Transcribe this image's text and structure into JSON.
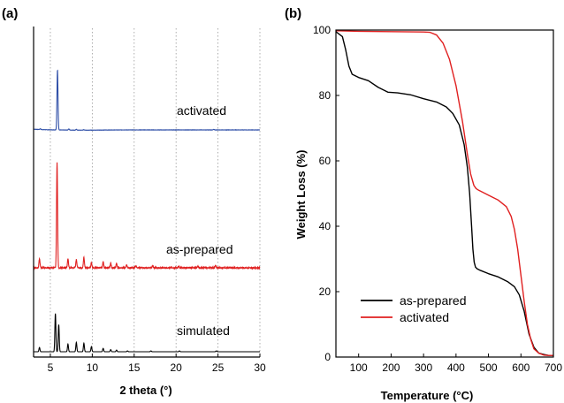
{
  "chart_data": [
    {
      "panel": "(a)",
      "type": "line",
      "xlabel": "2 theta (°)",
      "ylabel": "",
      "xlim": [
        3,
        30
      ],
      "xticks": [
        5,
        10,
        15,
        20,
        25,
        30
      ],
      "grid_x": "dotted",
      "series": [
        {
          "name": "activated",
          "color": "#3050a8",
          "baseline": 0.0,
          "noise": true,
          "peaks": [
            [
              3.8,
              0.25
            ],
            [
              5.85,
              20.0
            ],
            [
              7.2,
              0.35
            ],
            [
              8.1,
              0.25
            ],
            [
              9.0,
              0.15
            ],
            [
              24.5,
              0.15
            ]
          ]
        },
        {
          "name": "as-prepared",
          "color": "#e02020",
          "baseline": 0.0,
          "noise": true,
          "peaks": [
            [
              3.7,
              0.6
            ],
            [
              5.8,
              7.0
            ],
            [
              7.1,
              0.6
            ],
            [
              8.1,
              0.55
            ],
            [
              9.0,
              0.7
            ],
            [
              9.9,
              0.35
            ],
            [
              11.3,
              0.4
            ],
            [
              12.2,
              0.3
            ],
            [
              12.9,
              0.3
            ],
            [
              14.1,
              0.2
            ],
            [
              15.2,
              0.15
            ],
            [
              17.2,
              0.12
            ],
            [
              20.3,
              0.12
            ],
            [
              22.6,
              0.1
            ],
            [
              24.7,
              0.15
            ]
          ]
        },
        {
          "name": "simulated",
          "color": "#000000",
          "baseline": 0.0,
          "noise": false,
          "peaks": [
            [
              3.7,
              0.5
            ],
            [
              5.6,
              4.5
            ],
            [
              6.0,
              3.2
            ],
            [
              7.1,
              0.9
            ],
            [
              8.1,
              1.1
            ],
            [
              9.0,
              1.0
            ],
            [
              9.9,
              0.6
            ],
            [
              11.3,
              0.4
            ],
            [
              12.2,
              0.25
            ],
            [
              12.9,
              0.2
            ],
            [
              14.2,
              0.1
            ],
            [
              17.0,
              0.1
            ],
            [
              20.4,
              0.1
            ],
            [
              24.8,
              0.1
            ]
          ]
        }
      ]
    },
    {
      "panel": "(b)",
      "type": "line",
      "xlabel": "Temperature (°C)",
      "ylabel": "Weight Loss (%)",
      "xlim": [
        30,
        700
      ],
      "ylim": [
        0,
        100
      ],
      "xticks": [
        100,
        200,
        300,
        400,
        500,
        600,
        700
      ],
      "yticks": [
        0,
        20,
        40,
        60,
        80,
        100
      ],
      "legend": "bottom-left",
      "series": [
        {
          "name": "as-prepared",
          "color": "#000000",
          "x": [
            30,
            50,
            60,
            70,
            80,
            100,
            130,
            160,
            190,
            220,
            260,
            300,
            340,
            370,
            390,
            410,
            425,
            435,
            442,
            448,
            452,
            456,
            460,
            465,
            475,
            500,
            530,
            560,
            580,
            595,
            610,
            625,
            640,
            655,
            670,
            685,
            700
          ],
          "y": [
            99.5,
            98,
            94,
            89,
            86.5,
            85.5,
            84.5,
            82.5,
            81,
            80.8,
            80.2,
            79,
            78,
            76.5,
            74.5,
            71,
            65,
            58,
            50,
            40,
            33,
            29,
            27.5,
            27,
            26.5,
            25.5,
            24.5,
            23,
            21.5,
            19,
            14,
            7,
            3,
            1.2,
            0.8,
            0.5,
            0.5
          ]
        },
        {
          "name": "activated",
          "color": "#e02020",
          "x": [
            30,
            100,
            200,
            300,
            320,
            340,
            360,
            380,
            400,
            420,
            435,
            445,
            455,
            462,
            470,
            480,
            500,
            530,
            555,
            570,
            580,
            590,
            600,
            610,
            620,
            630,
            640,
            655,
            670,
            685,
            700
          ],
          "y": [
            99.8,
            99.6,
            99.5,
            99.4,
            99.3,
            98.5,
            96,
            91,
            83,
            72,
            62,
            56,
            52.5,
            51.5,
            51,
            50.5,
            49.5,
            48,
            46,
            43,
            39,
            33,
            25,
            17,
            10,
            5.5,
            2.5,
            1.2,
            0.6,
            0.5,
            0.5
          ]
        }
      ]
    }
  ]
}
